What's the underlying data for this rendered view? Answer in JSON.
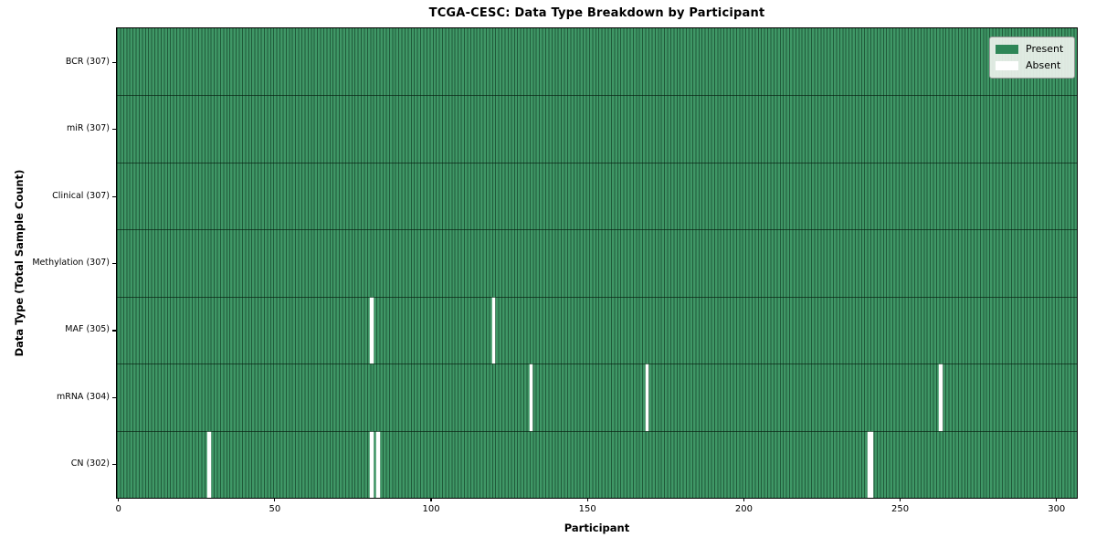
{
  "figure": {
    "background": "#ffffff"
  },
  "chart_data": {
    "type": "heatmap",
    "title": "TCGA-CESC: Data Type Breakdown by Participant",
    "xlabel": "Participant",
    "ylabel": "Data Type (Total Sample Count)",
    "x_ticks": [
      0,
      50,
      100,
      150,
      200,
      250,
      300
    ],
    "x_range": [
      -0.5,
      306.5
    ],
    "participants_total": 307,
    "grid": "cell-borders-on",
    "legend_position": "upper-right",
    "legend": [
      {
        "label": "Present",
        "color": "#2e8657"
      },
      {
        "label": "Absent",
        "color": "#ffffff"
      }
    ],
    "rows": [
      {
        "label": "BCR (307)",
        "data_type": "BCR",
        "present_count": 307,
        "total_participants": 307,
        "absent_participants": []
      },
      {
        "label": "miR (307)",
        "data_type": "miR",
        "present_count": 307,
        "total_participants": 307,
        "absent_participants": []
      },
      {
        "label": "Clinical (307)",
        "data_type": "Clinical",
        "present_count": 307,
        "total_participants": 307,
        "absent_participants": []
      },
      {
        "label": "Methylation (307)",
        "data_type": "Methylation",
        "present_count": 307,
        "total_participants": 307,
        "absent_participants": []
      },
      {
        "label": "MAF (305)",
        "data_type": "MAF",
        "present_count": 305,
        "total_participants": 307,
        "absent_participants": [
          81,
          120
        ]
      },
      {
        "label": "mRNA (304)",
        "data_type": "mRNA",
        "present_count": 304,
        "total_participants": 307,
        "absent_participants": [
          132,
          169,
          263
        ]
      },
      {
        "label": "CN (302)",
        "data_type": "CN",
        "present_count": 302,
        "total_participants": 307,
        "absent_participants": [
          29,
          81,
          83,
          240,
          241
        ]
      }
    ],
    "colors": {
      "present_fill": "#3f9766",
      "cell_border": "rgba(6,40,22,0.55)",
      "row_border": "rgba(4,26,14,0.65)",
      "plot_border": "#000000",
      "legend_background": "rgba(237,242,237,0.92)"
    }
  }
}
